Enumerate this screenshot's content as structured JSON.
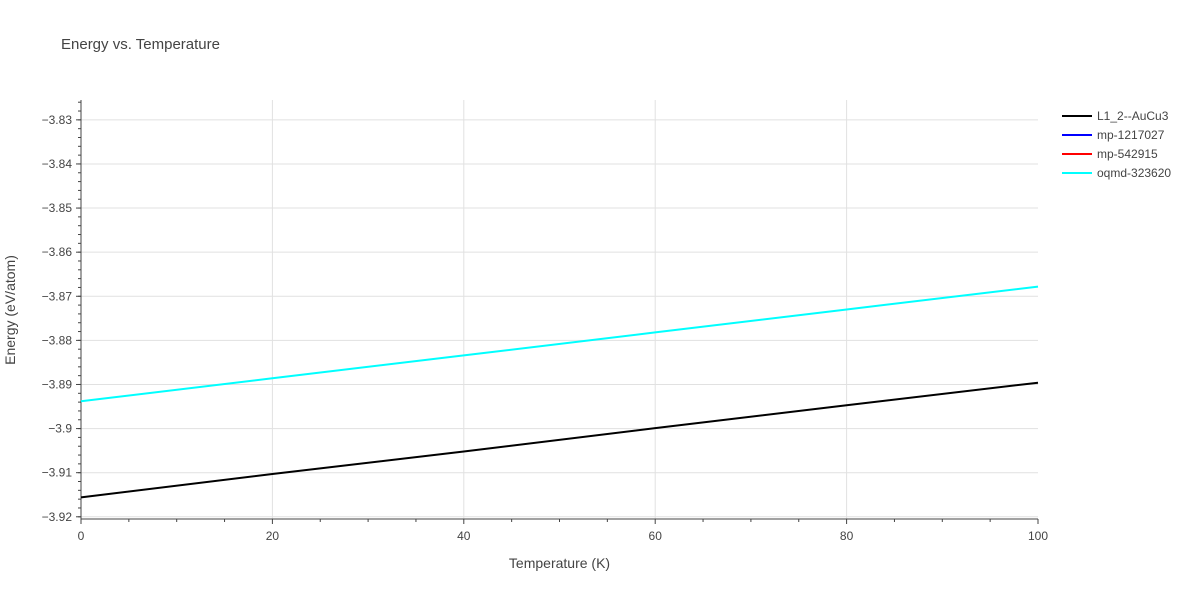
{
  "title": "Energy vs. Temperature",
  "chart_data": {
    "type": "line",
    "title": "Energy vs. Temperature",
    "xlabel": "Temperature (K)",
    "ylabel": "Energy (eV/atom)",
    "xlim": [
      0,
      100
    ],
    "ylim": [
      -3.9205,
      -3.8255
    ],
    "x_ticks": [
      0,
      20,
      40,
      60,
      80,
      100
    ],
    "x_tick_labels": [
      "0",
      "20",
      "40",
      "60",
      "80",
      "100"
    ],
    "y_ticks": [
      -3.92,
      -3.91,
      -3.9,
      -3.89,
      -3.88,
      -3.87,
      -3.86,
      -3.85,
      -3.84,
      -3.83
    ],
    "y_tick_labels": [
      "−3.92",
      "−3.91",
      "−3.9",
      "−3.89",
      "−3.88",
      "−3.87",
      "−3.86",
      "−3.85",
      "−3.84",
      "−3.83"
    ],
    "grid": true,
    "legend_position": "top-right",
    "series": [
      {
        "name": "L1_2--AuCu3",
        "color": "#000000",
        "x": [
          0,
          20,
          40,
          60,
          80,
          100
        ],
        "y": [
          -3.9156,
          -3.9103,
          -3.9052,
          -3.8999,
          -3.8947,
          -3.8896
        ]
      },
      {
        "name": "mp-1217027",
        "color": "#0000ff",
        "x": [],
        "y": []
      },
      {
        "name": "mp-542915",
        "color": "#ff0000",
        "x": [],
        "y": []
      },
      {
        "name": "oqmd-323620",
        "color": "#00ffff",
        "x": [
          0,
          20,
          40,
          60,
          80,
          100
        ],
        "y": [
          -3.8938,
          -3.8886,
          -3.8834,
          -3.8782,
          -3.873,
          -3.8678
        ]
      }
    ]
  }
}
